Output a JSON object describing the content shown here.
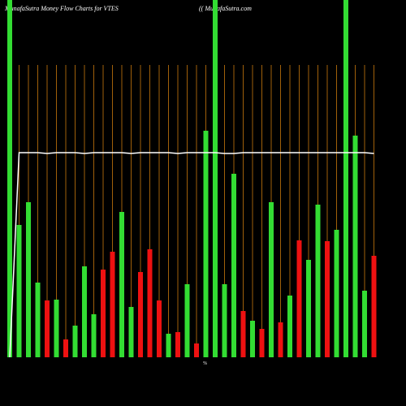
{
  "chart_data": {
    "type": "bar",
    "title": "MunafaSutra  Money Flow  Charts for VTES",
    "watermark": "(( MunafaSutra.com",
    "axis_label": "%",
    "ylim": [
      0,
      440
    ],
    "grid": true,
    "grid_color": "#a0600a",
    "values": [
      440,
      163,
      191,
      92,
      70,
      71,
      22,
      39,
      112,
      53,
      108,
      130,
      179,
      62,
      105,
      133,
      70,
      29,
      31,
      90,
      17,
      279,
      440,
      90,
      226,
      57,
      45,
      35,
      191,
      43,
      76,
      144,
      120,
      188,
      143,
      157,
      440,
      273,
      82,
      125
    ],
    "colors": [
      "#33dd33",
      "#33dd33",
      "#33dd33",
      "#33dd33",
      "#ee1111",
      "#33dd33",
      "#ee1111",
      "#33dd33",
      "#33dd33",
      "#33dd33",
      "#ee1111",
      "#ee1111",
      "#33dd33",
      "#33dd33",
      "#ee1111",
      "#ee1111",
      "#ee1111",
      "#33dd33",
      "#ee1111",
      "#33dd33",
      "#ee1111",
      "#33dd33",
      "#33dd33",
      "#33dd33",
      "#33dd33",
      "#ee1111",
      "#33dd33",
      "#ee1111",
      "#33dd33",
      "#ee1111",
      "#33dd33",
      "#ee1111",
      "#33dd33",
      "#33dd33",
      "#ee1111",
      "#33dd33",
      "#33dd33",
      "#33dd33",
      "#33dd33",
      "#ee1111"
    ],
    "line": {
      "color": "#ffffff",
      "values": [
        0,
        252,
        252,
        252,
        251,
        252,
        252,
        252,
        251,
        252,
        252,
        252,
        252,
        251,
        252,
        252,
        252,
        252,
        251,
        252,
        252,
        252,
        252,
        251,
        251,
        252,
        252,
        252,
        252,
        252,
        252,
        252,
        252,
        252,
        252,
        252,
        252,
        252,
        252,
        251
      ]
    }
  }
}
